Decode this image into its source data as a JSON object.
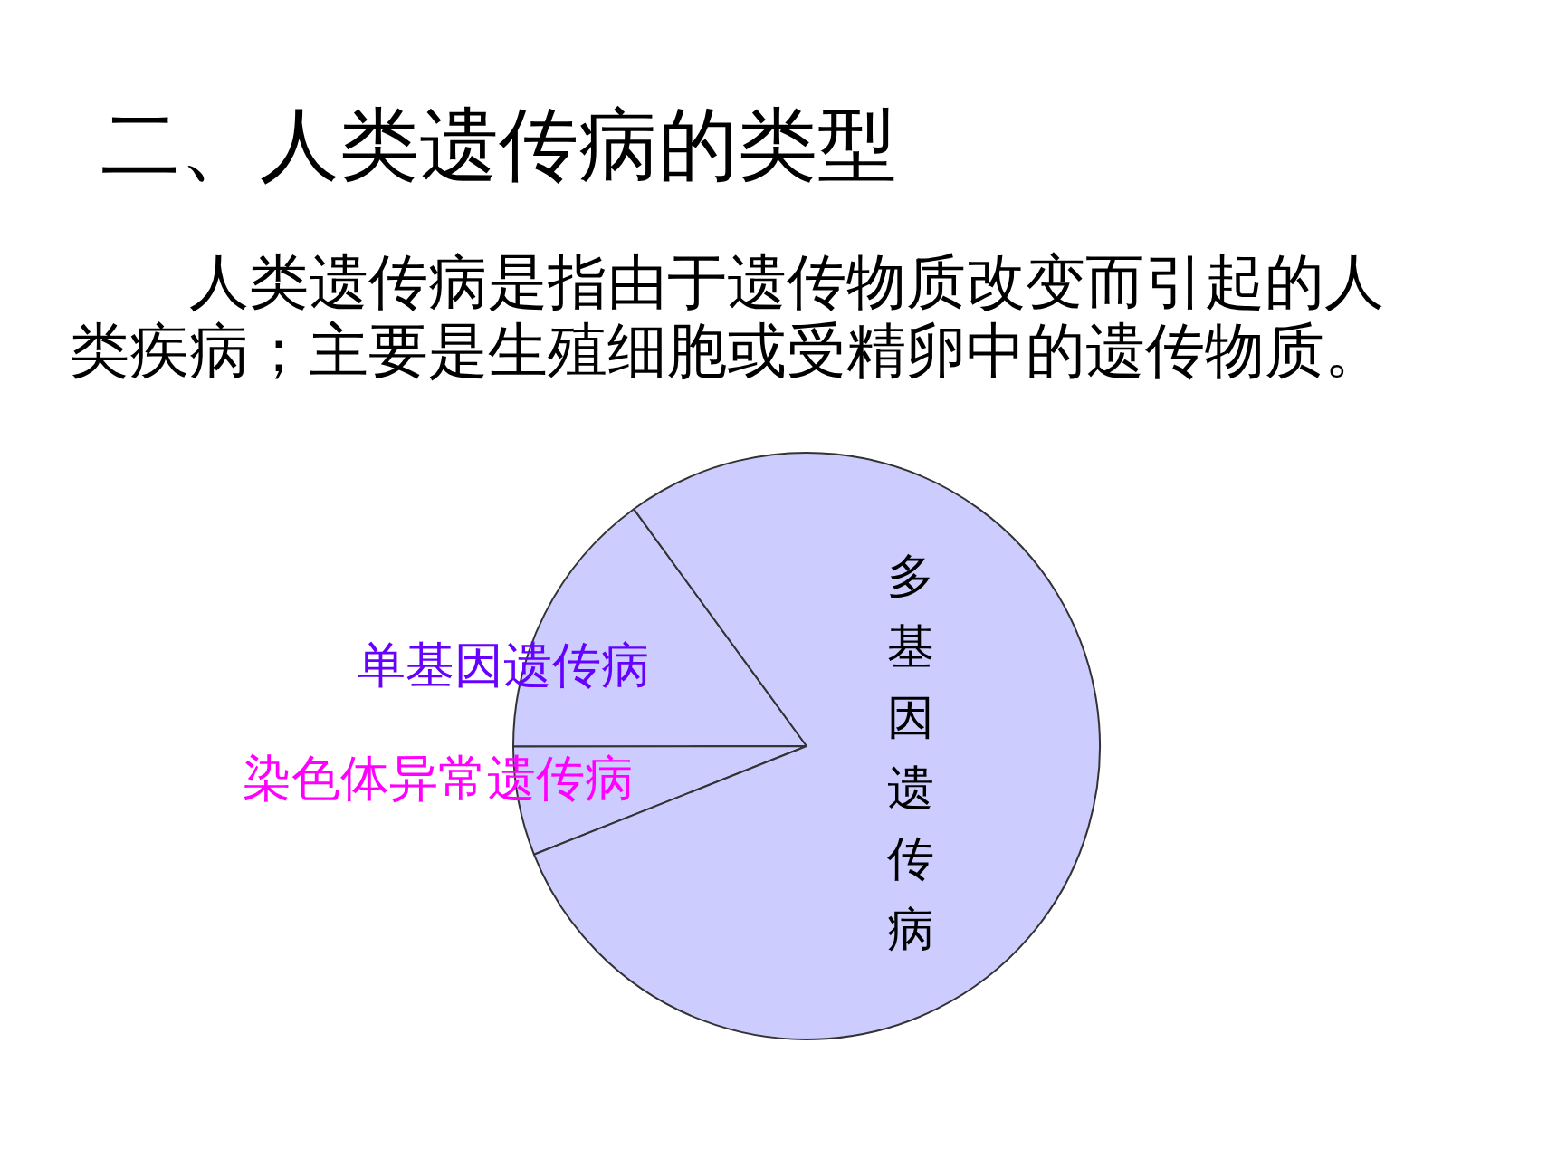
{
  "chart_data": {
    "type": "pie",
    "title": "二、人类遗传病的类型",
    "subtitle": "人类遗传病是指由于遗传物质改变而引起的人类疾病；主要是生殖细胞或受精卵中的遗传物质。",
    "categories": [
      "单基因遗传病",
      "染色体异常遗传病",
      "多基因遗传病"
    ],
    "values": [
      15,
      6,
      79
    ],
    "colors": [
      "#ccccff",
      "#ccccff",
      "#ccccff"
    ]
  }
}
